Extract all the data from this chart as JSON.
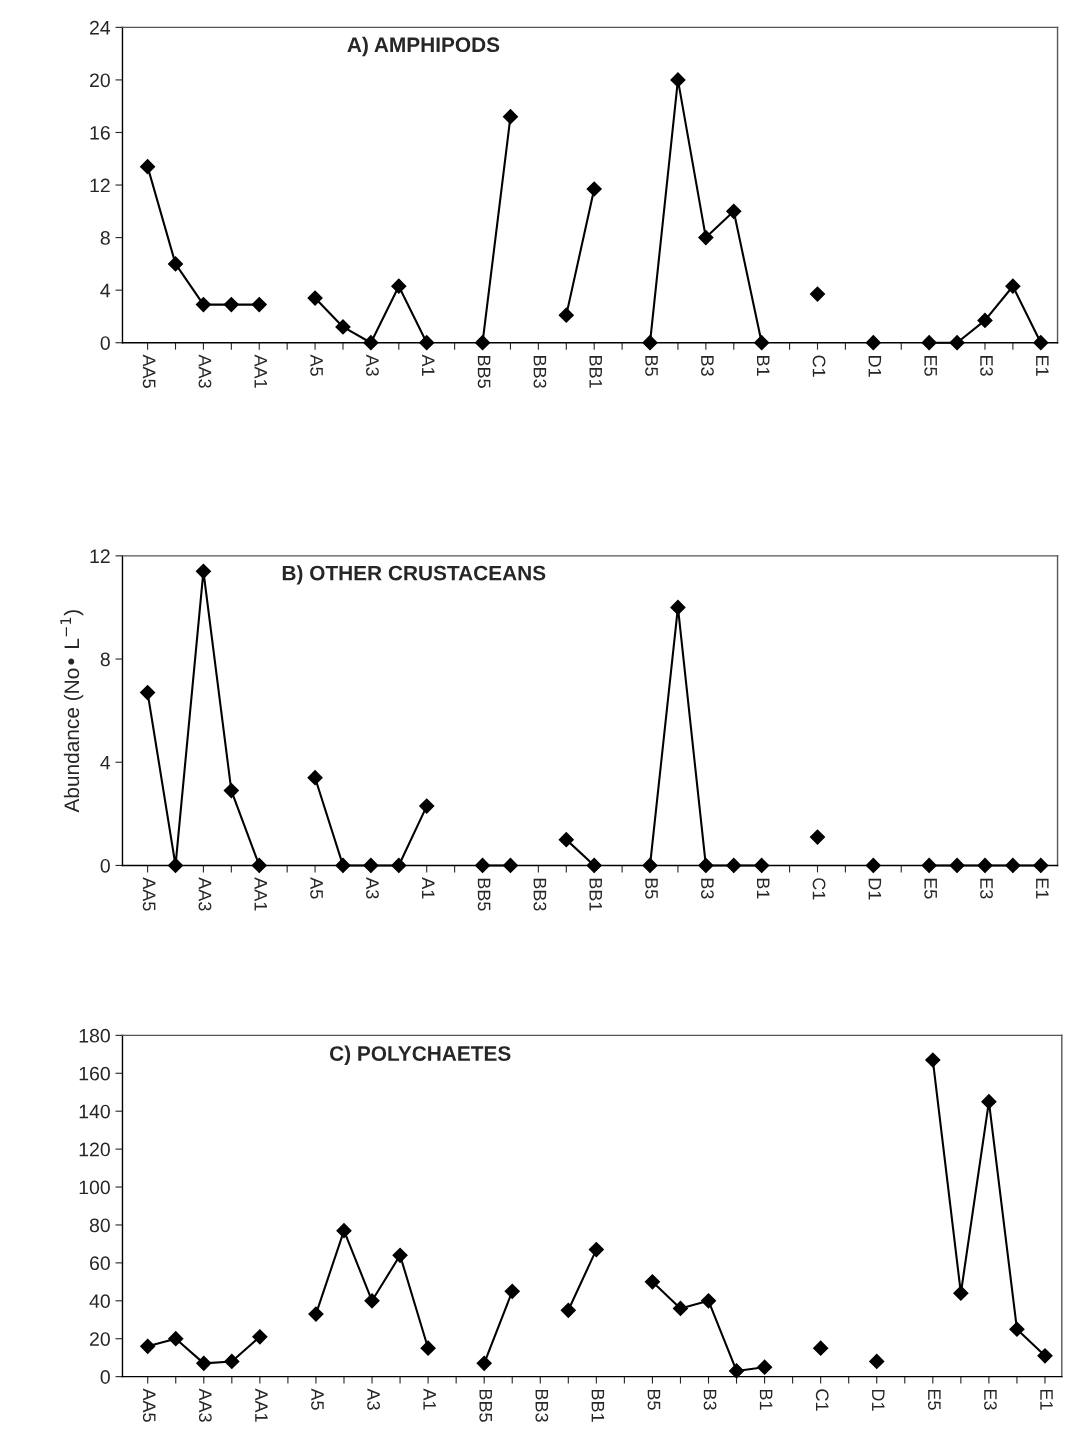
{
  "chart_data": [
    {
      "type": "line",
      "title": "A) AMPHIPODS",
      "categories": [
        "AA5",
        null,
        "AA3",
        null,
        "AA1",
        null,
        "A5",
        null,
        "A3",
        null,
        "A1",
        null,
        "BB5",
        null,
        "BB3",
        null,
        "BB1",
        null,
        "B5",
        null,
        "B3",
        null,
        "B1",
        null,
        "C1",
        null,
        "D1",
        null,
        "E5",
        null,
        "E3",
        null,
        "E1"
      ],
      "series": [
        {
          "color": "#000000",
          "values": [
            13.4,
            6.0,
            2.9,
            2.9,
            2.9,
            null,
            3.4,
            1.2,
            0,
            4.3,
            0,
            null,
            0,
            17.2,
            null,
            2.1,
            11.7,
            null,
            0,
            20,
            8,
            10,
            0,
            null,
            3.7,
            null,
            0,
            null,
            0,
            0,
            1.7,
            4.3,
            0
          ]
        }
      ],
      "ylim": [
        0,
        24
      ],
      "yticks": [
        0,
        4,
        8,
        12,
        16,
        20,
        24
      ],
      "marker": "diamond",
      "line_style": "solid",
      "grid": false
    },
    {
      "type": "line",
      "title": "B) OTHER CRUSTACEANS",
      "ylabel": "Abundance (No• L$^{−1}$)",
      "categories": [
        "AA5",
        null,
        "AA3",
        null,
        "AA1",
        null,
        "A5",
        null,
        "A3",
        null,
        "A1",
        null,
        "BB5",
        null,
        "BB3",
        null,
        "BB1",
        null,
        "B5",
        null,
        "B3",
        null,
        "B1",
        null,
        "C1",
        null,
        "D1",
        null,
        "E5",
        null,
        "E3",
        null,
        "E1"
      ],
      "series": [
        {
          "color": "#000000",
          "values": [
            6.7,
            0,
            11.4,
            2.9,
            0,
            null,
            3.4,
            0,
            0,
            0,
            2.3,
            null,
            0,
            0,
            null,
            1.0,
            0,
            null,
            0,
            10,
            0,
            0,
            0,
            null,
            1.1,
            null,
            0,
            null,
            0,
            0,
            0,
            0,
            0
          ]
        }
      ],
      "ylim": [
        0,
        12
      ],
      "yticks": [
        0,
        4,
        8,
        12
      ],
      "marker": "diamond",
      "line_style": "solid",
      "grid": false
    },
    {
      "type": "line",
      "title": "C) POLYCHAETES",
      "categories": [
        "AA5",
        null,
        "AA3",
        null,
        "AA1",
        null,
        "A5",
        null,
        "A3",
        null,
        "A1",
        null,
        "BB5",
        null,
        "BB3",
        null,
        "BB1",
        null,
        "B5",
        null,
        "B3",
        null,
        "B1",
        null,
        "C1",
        null,
        "D1",
        null,
        "E5",
        null,
        "E3",
        null,
        "E1"
      ],
      "series": [
        {
          "color": "#000000",
          "values": [
            16,
            20,
            7,
            8,
            21,
            null,
            33,
            77,
            40,
            64,
            15,
            null,
            7,
            45,
            null,
            35,
            67,
            null,
            50,
            36,
            40,
            3,
            5,
            null,
            15,
            null,
            8,
            null,
            167,
            44,
            145,
            25,
            11
          ]
        }
      ],
      "ylim": [
        0,
        180
      ],
      "yticks": [
        0,
        20,
        40,
        60,
        80,
        100,
        120,
        140,
        160,
        180
      ],
      "marker": "diamond",
      "line_style": "solid",
      "grid": false
    }
  ]
}
